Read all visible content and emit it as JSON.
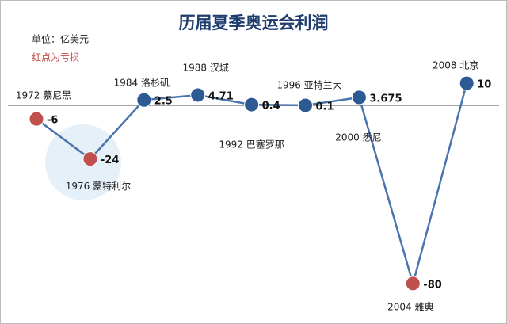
{
  "chart_data": {
    "type": "line",
    "title": "历届夏季奥运会利润",
    "annotations": [
      "单位：亿美元",
      "红点为亏损"
    ],
    "categories": [
      "1972 慕尼黑",
      "1976 蒙特利尔",
      "1984 洛杉矶",
      "1988 汉城",
      "1992 巴塞罗那",
      "1996 亚特兰大",
      "2000 悉尼",
      "2004 雅典",
      "2008 北京"
    ],
    "values": [
      -6,
      -24,
      2.5,
      4.71,
      0.4,
      0.1,
      3.675,
      -80,
      10
    ],
    "ylim": [
      -90,
      30
    ],
    "line_color": "#4a74ad",
    "profit_color": "#2e5a94",
    "loss_color": "#c0504d"
  }
}
